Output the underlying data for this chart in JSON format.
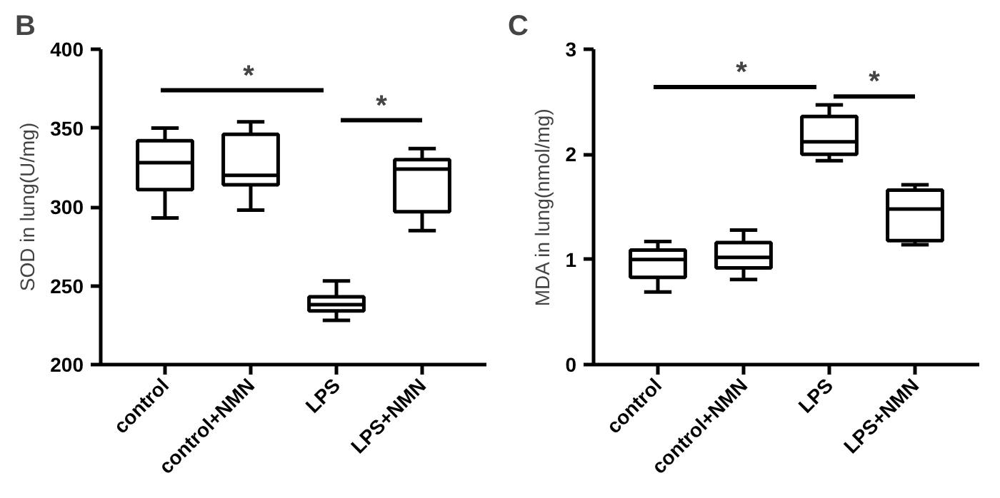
{
  "chart_data": [
    {
      "type": "box",
      "title": "B",
      "ylabel": "SOD in lung(U/mg)",
      "categories": [
        "control",
        "control+NMN",
        "LPS",
        "LPS+NMN"
      ],
      "ylim": [
        200,
        400
      ],
      "yticks": [
        200,
        250,
        300,
        350,
        400
      ],
      "grid": false,
      "color": "#000000",
      "boxes": [
        {
          "low": 293,
          "q1": 311,
          "median": 328,
          "q3": 342,
          "high": 350
        },
        {
          "low": 298,
          "q1": 314,
          "median": 320,
          "q3": 346,
          "high": 354
        },
        {
          "low": 228,
          "q1": 234,
          "median": 238,
          "q3": 243,
          "high": 253
        },
        {
          "low": 285,
          "q1": 297,
          "median": 324,
          "q3": 330,
          "high": 337
        }
      ],
      "annotations": [
        "*",
        "*"
      ]
    },
    {
      "type": "box",
      "title": "C",
      "ylabel": "MDA in lung(nmol/mg)",
      "categories": [
        "control",
        "control+NMN",
        "LPS",
        "LPS+NMN"
      ],
      "ylim": [
        0,
        3
      ],
      "yticks": [
        0,
        1,
        2,
        3
      ],
      "grid": false,
      "color": "#000000",
      "boxes": [
        {
          "low": 0.69,
          "q1": 0.83,
          "median": 1.0,
          "q3": 1.09,
          "high": 1.17
        },
        {
          "low": 0.81,
          "q1": 0.92,
          "median": 1.02,
          "q3": 1.16,
          "high": 1.28
        },
        {
          "low": 1.94,
          "q1": 2.0,
          "median": 2.12,
          "q3": 2.36,
          "high": 2.47
        },
        {
          "low": 1.14,
          "q1": 1.18,
          "median": 1.48,
          "q3": 1.66,
          "high": 1.71
        }
      ],
      "annotations": [
        "*",
        "*"
      ]
    }
  ]
}
